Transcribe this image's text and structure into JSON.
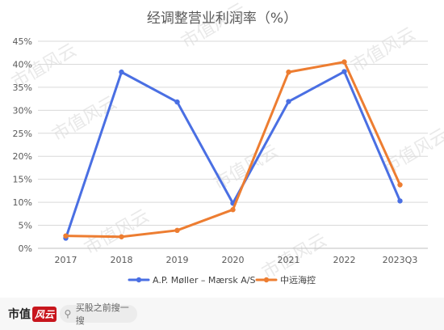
{
  "chart_data": {
    "type": "line",
    "title": "经调整营业利润率（%）",
    "x": [
      "2017",
      "2018",
      "2019",
      "2020",
      "2021",
      "2022",
      "2023Q3"
    ],
    "ylim": [
      0,
      45
    ],
    "yticks": [
      "0%",
      "5%",
      "10%",
      "15%",
      "20%",
      "25%",
      "30%",
      "35%",
      "40%",
      "45%"
    ],
    "grid": true,
    "legend_position": "bottom",
    "series": [
      {
        "name": "A.P. Møller – Mærsk A/S",
        "color": "#4a6fe3",
        "values": [
          2.2,
          38.3,
          31.8,
          9.8,
          31.9,
          38.4,
          10.3
        ]
      },
      {
        "name": "中远海控",
        "color": "#ed7d31",
        "values": [
          2.7,
          2.5,
          3.9,
          8.4,
          38.3,
          40.5,
          13.8
        ]
      }
    ]
  },
  "watermark": {
    "text": "市值风云"
  },
  "footer": {
    "brand_text": "市值",
    "brand_badge": "风云",
    "search_placeholder": "买股之前搜一搜"
  }
}
